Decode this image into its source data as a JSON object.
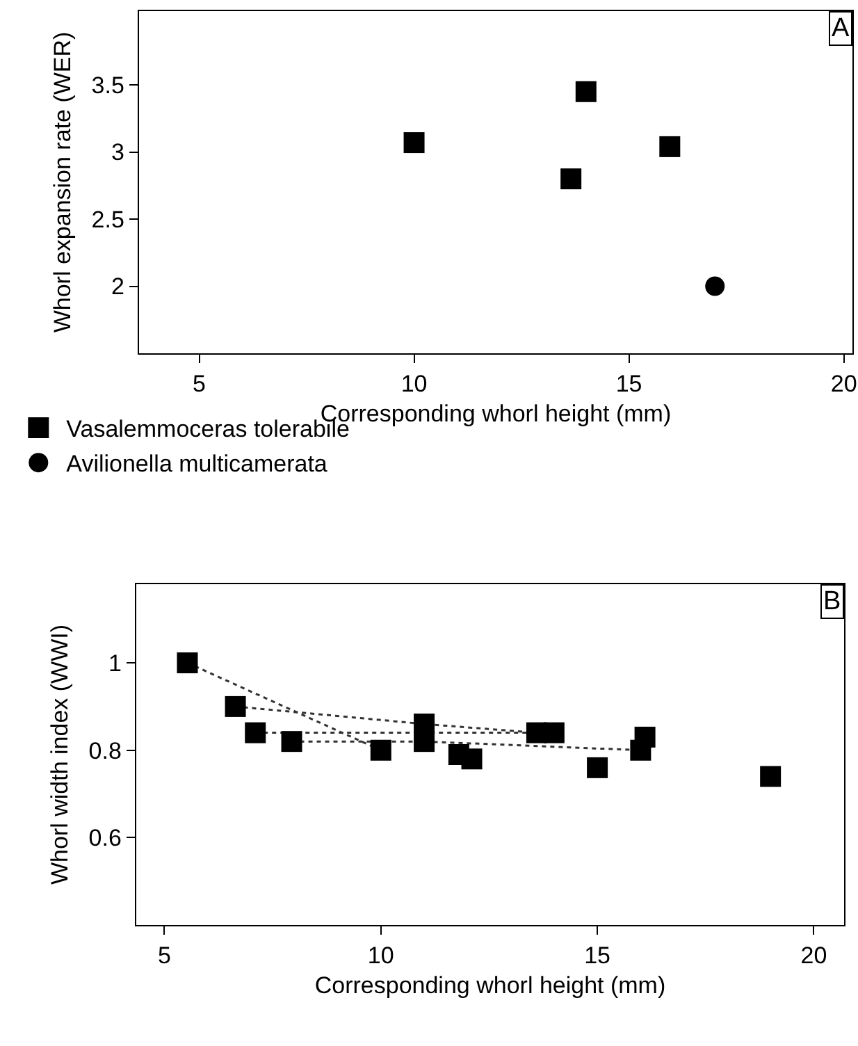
{
  "chart_data": [
    {
      "type": "scatter",
      "xlabel": "Corresponding whorl height (mm)",
      "ylabel": "Whorl expansion rate (WER)",
      "annotations": [
        "A"
      ],
      "xlim": [
        3.6,
        20.2
      ],
      "xticks": [
        5,
        10,
        15,
        20
      ],
      "ylim": [
        1.5,
        4.05
      ],
      "yticks": [
        2,
        2.5,
        3,
        3.5
      ],
      "grid": false,
      "legend": "bottom",
      "series": [
        {
          "name": "Vasalemmoceras tolerabile",
          "color": "#000000",
          "marker": "square",
          "x": [
            10,
            13.65,
            14,
            15.95
          ],
          "values": [
            3.07,
            2.8,
            3.45,
            3.04
          ]
        },
        {
          "name": "Avilionella multicamerata",
          "color": "#000000",
          "marker": "circle",
          "x": [
            17
          ],
          "values": [
            2.0
          ]
        }
      ]
    },
    {
      "type": "scatter",
      "xlabel": "Corresponding whorl height (mm)",
      "ylabel": "Whorl width index (WWI)",
      "annotations": [
        "B"
      ],
      "xlim": [
        4.35,
        20.7
      ],
      "xticks": [
        5,
        10,
        15,
        20
      ],
      "ylim": [
        0.4,
        1.18
      ],
      "yticks": [
        0.6,
        0.8,
        1
      ],
      "grid": false,
      "series": [
        {
          "type": "line",
          "color": "#333333",
          "line_style": "dotted",
          "x": [
            5.53,
            10
          ],
          "values": [
            1.0,
            0.8
          ]
        },
        {
          "type": "line",
          "color": "#333333",
          "line_style": "dotted",
          "x": [
            6.64,
            11,
            13.6
          ],
          "values": [
            0.9,
            0.86,
            0.84
          ]
        },
        {
          "type": "line",
          "color": "#333333",
          "line_style": "dotted",
          "x": [
            7.1,
            11,
            14
          ],
          "values": [
            0.84,
            0.84,
            0.84
          ]
        },
        {
          "type": "line",
          "color": "#333333",
          "line_style": "dotted",
          "x": [
            7.94,
            11,
            16
          ],
          "values": [
            0.82,
            0.82,
            0.8
          ]
        },
        {
          "color": "#000000",
          "marker": "square",
          "x": [
            5.53,
            6.64,
            7.1,
            7.94,
            10,
            11,
            11,
            11.8,
            12.1,
            13.6,
            14,
            15,
            16,
            16.1,
            19
          ],
          "values": [
            1.0,
            0.9,
            0.84,
            0.82,
            0.8,
            0.86,
            0.82,
            0.79,
            0.78,
            0.84,
            0.84,
            0.76,
            0.8,
            0.83,
            0.74
          ]
        }
      ]
    }
  ]
}
